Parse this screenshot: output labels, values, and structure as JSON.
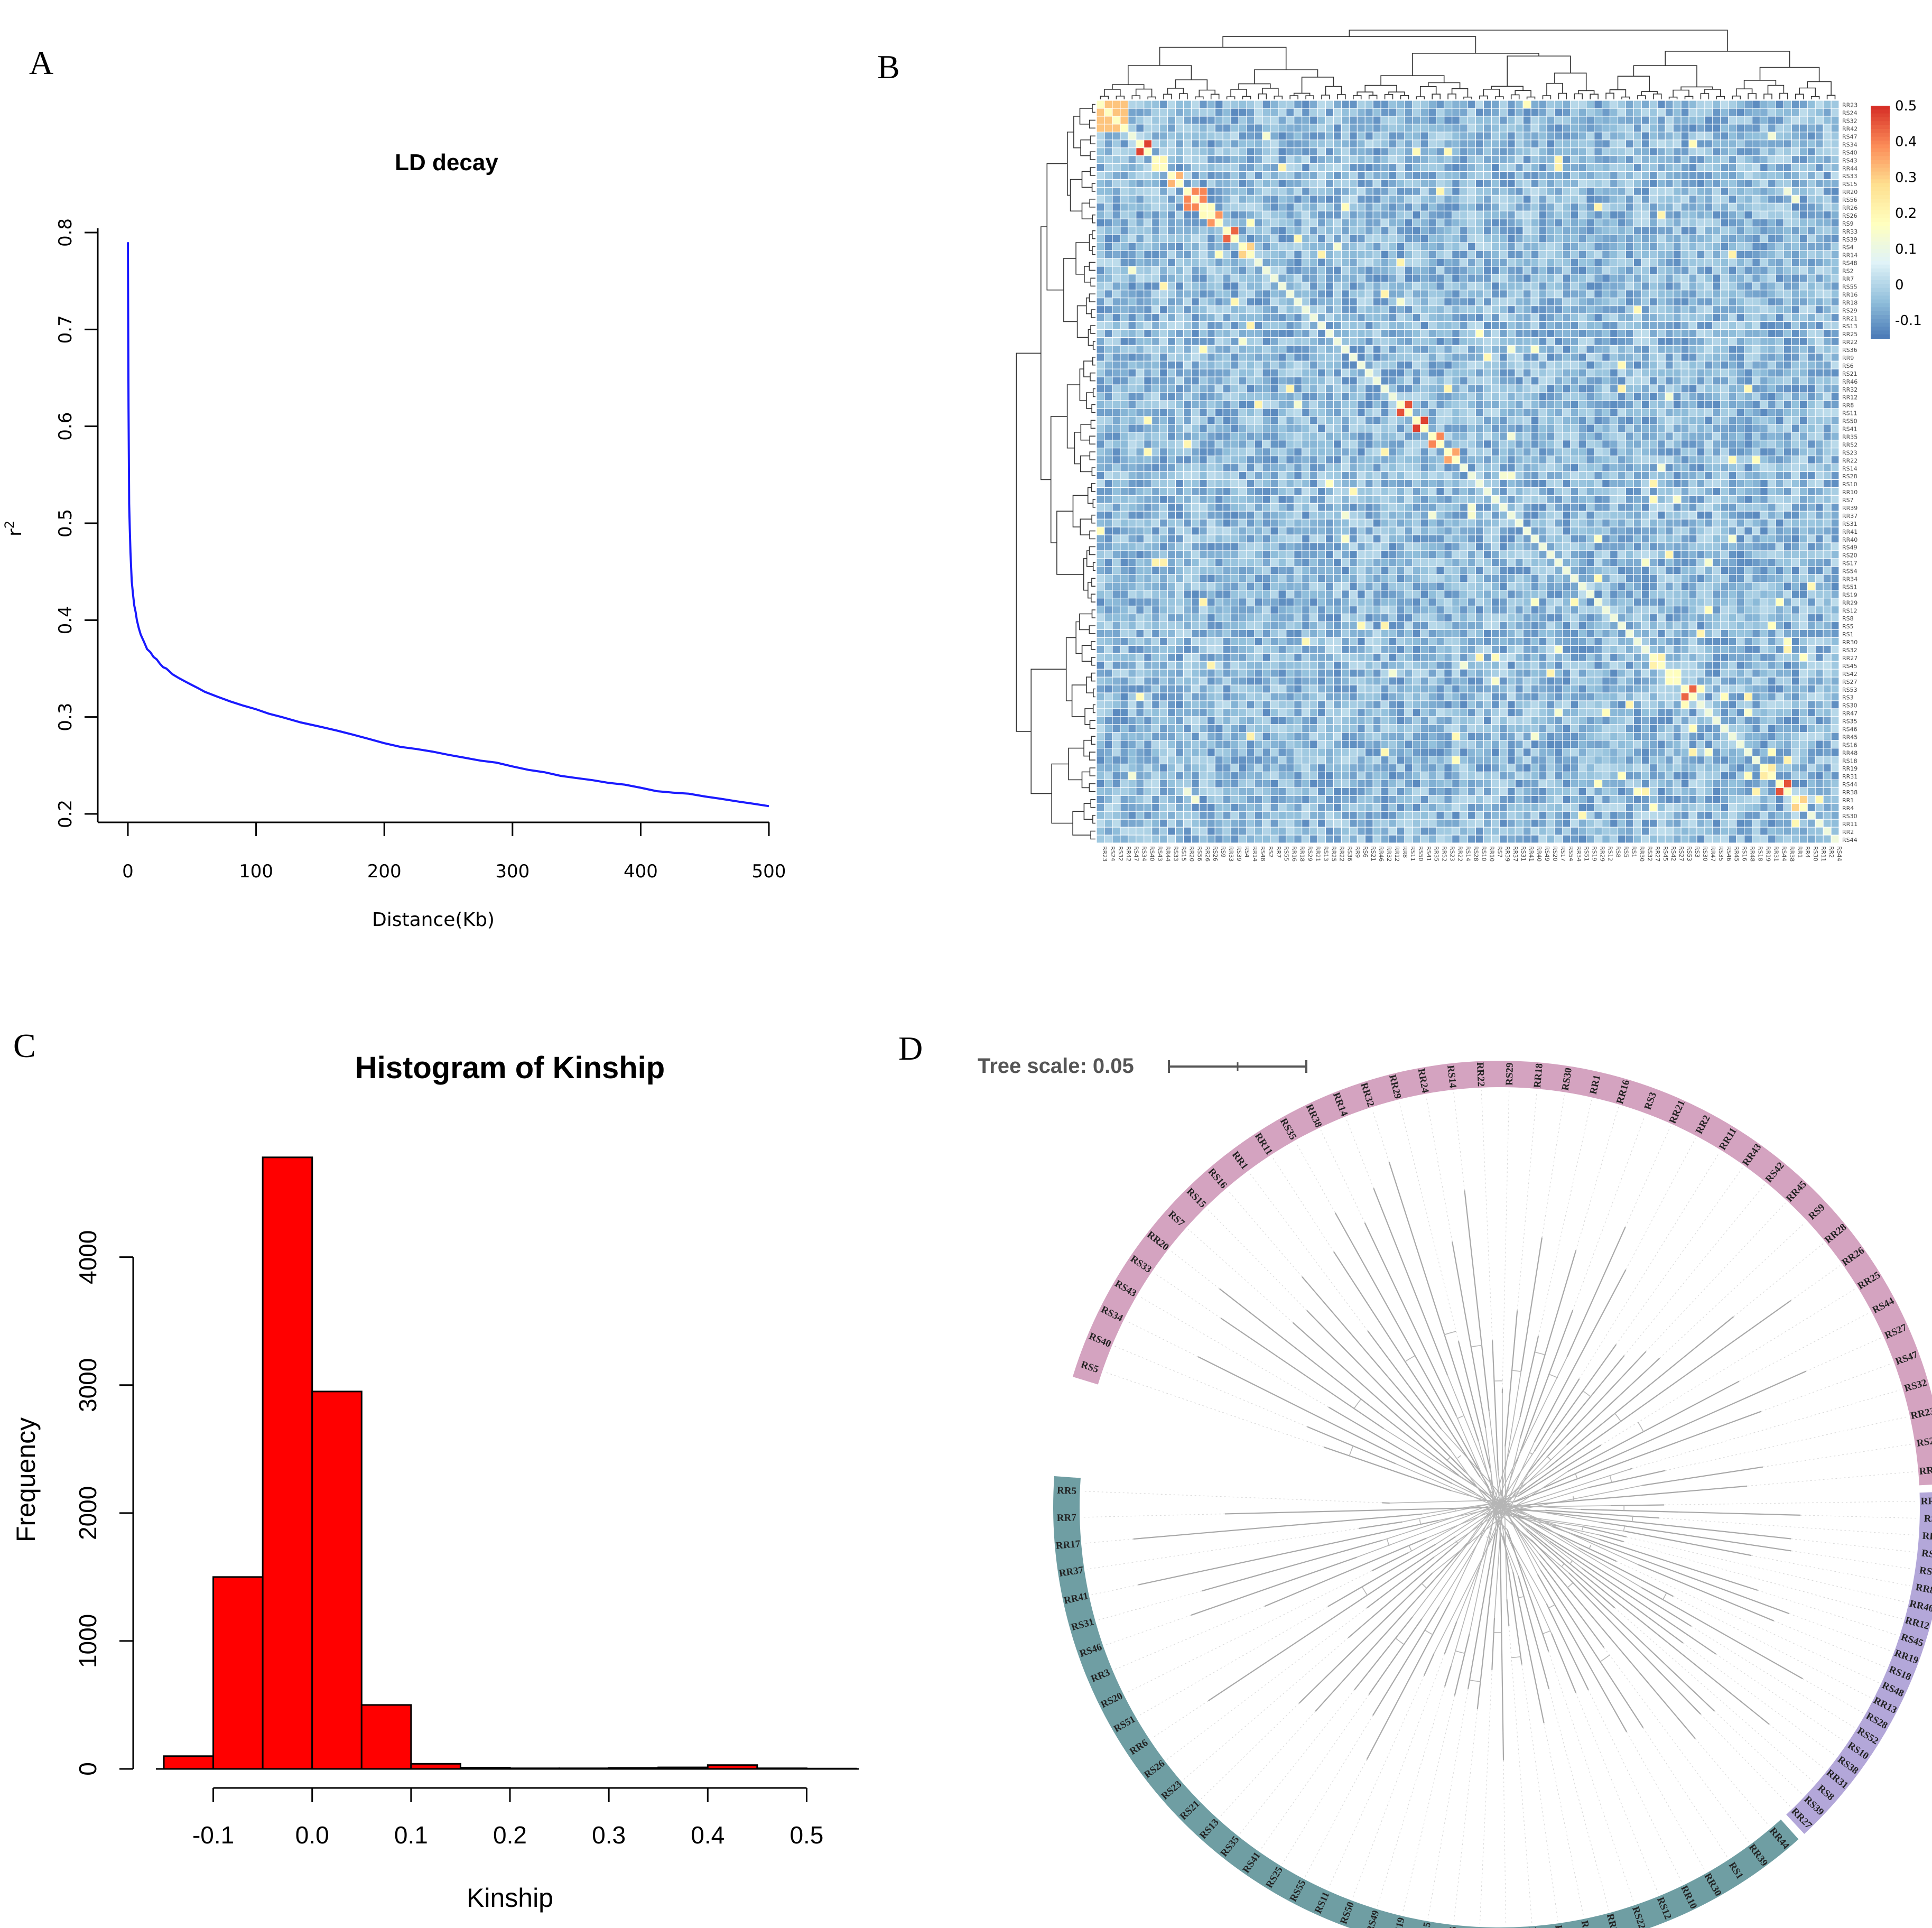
{
  "panels": {
    "A": "A",
    "B": "B",
    "C": "C",
    "D": "D"
  },
  "chart_data": [
    {
      "id": "A",
      "type": "line",
      "title": "LD decay",
      "xlabel": "Distance(Kb)",
      "ylabel": "r",
      "ylabel_sup": "2",
      "xlim": [
        0,
        500
      ],
      "ylim": [
        0.2,
        0.8
      ],
      "xticks": [
        0,
        100,
        200,
        300,
        400,
        500
      ],
      "yticks": [
        0.2,
        0.3,
        0.4,
        0.5,
        0.6,
        0.7,
        0.8
      ],
      "color": "#1a1aff",
      "x": [
        0,
        0.5,
        1,
        2,
        3,
        5,
        7,
        10,
        15,
        20,
        25,
        30,
        40,
        50,
        60,
        80,
        100,
        120,
        150,
        175,
        200,
        225,
        250,
        275,
        300,
        325,
        350,
        375,
        400,
        425,
        450,
        475,
        500
      ],
      "y": [
        0.79,
        0.62,
        0.52,
        0.47,
        0.44,
        0.415,
        0.4,
        0.385,
        0.37,
        0.362,
        0.355,
        0.35,
        0.34,
        0.333,
        0.326,
        0.316,
        0.308,
        0.3,
        0.29,
        0.282,
        0.273,
        0.267,
        0.261,
        0.255,
        0.249,
        0.243,
        0.237,
        0.232,
        0.227,
        0.222,
        0.218,
        0.213,
        0.208
      ]
    },
    {
      "id": "B",
      "type": "heatmap",
      "n": 94,
      "vmin": -0.15,
      "vmax": 0.5,
      "colorbar_ticks": [
        0.5,
        0.4,
        0.3,
        0.2,
        0.1,
        0,
        -0.1
      ],
      "colorbar_labels": [
        "0.5",
        "0.4",
        "0.3",
        "0.2",
        "0.1",
        "0",
        "-0.1"
      ],
      "colors": [
        "#4575b4",
        "#91bfdb",
        "#e0f3f8",
        "#ffffbf",
        "#fee090",
        "#fc8d59",
        "#d73027"
      ],
      "diagonal_value": 0.12,
      "clusters": [
        {
          "start": 0,
          "size": 4,
          "value": 0.32
        },
        {
          "start": 5,
          "size": 2,
          "value": 0.48
        },
        {
          "start": 7,
          "size": 2,
          "value": 0.2
        },
        {
          "start": 9,
          "size": 2,
          "value": 0.34
        },
        {
          "start": 11,
          "size": 3,
          "value": 0.4
        },
        {
          "start": 14,
          "size": 2,
          "value": 0.38
        },
        {
          "start": 16,
          "size": 2,
          "value": 0.44
        },
        {
          "start": 18,
          "size": 2,
          "value": 0.3
        },
        {
          "start": 38,
          "size": 2,
          "value": 0.46
        },
        {
          "start": 40,
          "size": 2,
          "value": 0.48
        },
        {
          "start": 42,
          "size": 2,
          "value": 0.4
        },
        {
          "start": 44,
          "size": 2,
          "value": 0.36
        },
        {
          "start": 70,
          "size": 2,
          "value": 0.22
        },
        {
          "start": 72,
          "size": 2,
          "value": 0.18
        },
        {
          "start": 74,
          "size": 2,
          "value": 0.44
        },
        {
          "start": 84,
          "size": 2,
          "value": 0.24
        },
        {
          "start": 86,
          "size": 2,
          "value": 0.46
        },
        {
          "start": 88,
          "size": 2,
          "value": 0.3
        }
      ],
      "row_labels": [
        "RR23",
        "RS24",
        "RS32",
        "RR42",
        "RS47",
        "RS34",
        "RS40",
        "RS43",
        "RR44",
        "RS33",
        "RS15",
        "RR20",
        "RS56",
        "RR26",
        "RS26",
        "RS9",
        "RR33",
        "RS39",
        "RS4",
        "RR14",
        "RS48",
        "RS2",
        "RR7",
        "RS55",
        "RR16",
        "RR18",
        "RS29",
        "RR21",
        "RS13",
        "RR25",
        "RR22",
        "RS36",
        "RR9",
        "RS6",
        "RS21",
        "RR46",
        "RR32",
        "RR12",
        "RR8",
        "RS11",
        "RS50",
        "RS41",
        "RR35",
        "RR52",
        "RS23",
        "RR22",
        "RS14",
        "RS28",
        "RS10",
        "RR10",
        "RS7",
        "RR39",
        "RR37",
        "RS31",
        "RR41",
        "RR40",
        "RS49",
        "RS20",
        "RS17",
        "RS54",
        "RR34",
        "RS51",
        "RS19",
        "RR29",
        "RS12",
        "RS8",
        "RS5",
        "RS1",
        "RR30",
        "RS32",
        "RR27",
        "RS45",
        "RS42",
        "RS27",
        "RS53",
        "RS3",
        "RS30",
        "RR47",
        "RS35",
        "RS46",
        "RR45",
        "RS16",
        "RR48",
        "RS18",
        "RR19",
        "RR31",
        "RS44",
        "RR38",
        "RR1",
        "RR4",
        "RS30",
        "RR11",
        "RR2",
        "RS44"
      ]
    },
    {
      "id": "C",
      "type": "bar",
      "title": "Histogram of Kinship",
      "xlabel": "Kinship",
      "ylabel": "Frequency",
      "bin_edges": [
        -0.15,
        -0.1,
        -0.05,
        0.0,
        0.05,
        0.1,
        0.15,
        0.2,
        0.25,
        0.3,
        0.35,
        0.4,
        0.45,
        0.5,
        0.55
      ],
      "values": [
        100,
        1500,
        4780,
        2950,
        500,
        40,
        10,
        5,
        5,
        8,
        12,
        30,
        5,
        3
      ],
      "xticks": [
        -0.1,
        0.0,
        0.1,
        0.2,
        0.3,
        0.4,
        0.5
      ],
      "xtick_labels": [
        "-0.1",
        "0.0",
        "0.1",
        "0.2",
        "0.3",
        "0.4",
        "0.5"
      ],
      "yticks": [
        0,
        1000,
        2000,
        3000,
        4000
      ],
      "ylim": [
        0,
        4800
      ],
      "color": "#ff0000"
    },
    {
      "id": "D",
      "type": "other",
      "description_title": "Tree scale: 0.05",
      "groups": [
        {
          "color": "#d4a3c0",
          "labels": [
            "RS5",
            "RS40",
            "RS34",
            "RS43",
            "RS33",
            "RR20",
            "RS7",
            "RS15",
            "RS16",
            "RR1",
            "RR11",
            "RS35",
            "RR38",
            "RR14",
            "RR32",
            "RR29",
            "RR24",
            "RS14",
            "RR22",
            "RS29",
            "RR18",
            "RS30",
            "RR1",
            "RR16",
            "RS3",
            "RR21",
            "RR2",
            "RR11",
            "RR43",
            "RS42",
            "RR45",
            "RS9",
            "RR28",
            "RR26",
            "RR25",
            "RS44",
            "RS27",
            "RS47",
            "RS32",
            "RR23",
            "RS24",
            "RR42"
          ]
        },
        {
          "color": "#b3a7d9",
          "labels": [
            "RR36",
            "RS2",
            "RR9",
            "RS6",
            "RS4",
            "RR8",
            "RR46",
            "RR12",
            "RS45",
            "RR19",
            "RS18",
            "RS48",
            "RR13",
            "RS28",
            "RS52",
            "RS10",
            "RS38",
            "RR31",
            "RS8",
            "RS39",
            "RR27"
          ]
        },
        {
          "color": "#6f9ea3",
          "labels": [
            "RR44",
            "RR39",
            "RS1",
            "RR30",
            "RR10",
            "RS12",
            "RS22",
            "RR34",
            "RS36",
            "RS53",
            "RR17",
            "RS17",
            "RS37",
            "RS56",
            "RR15",
            "RS19",
            "RS49",
            "RS50",
            "RS11",
            "RS55",
            "RS25",
            "RS41",
            "RS35",
            "RS13",
            "RS21",
            "RS23",
            "RS26",
            "RR6",
            "RS51",
            "RS20",
            "RR3",
            "RS46",
            "RS31",
            "RR41",
            "RR37",
            "RR17",
            "RR7",
            "RR5"
          ]
        }
      ]
    }
  ]
}
